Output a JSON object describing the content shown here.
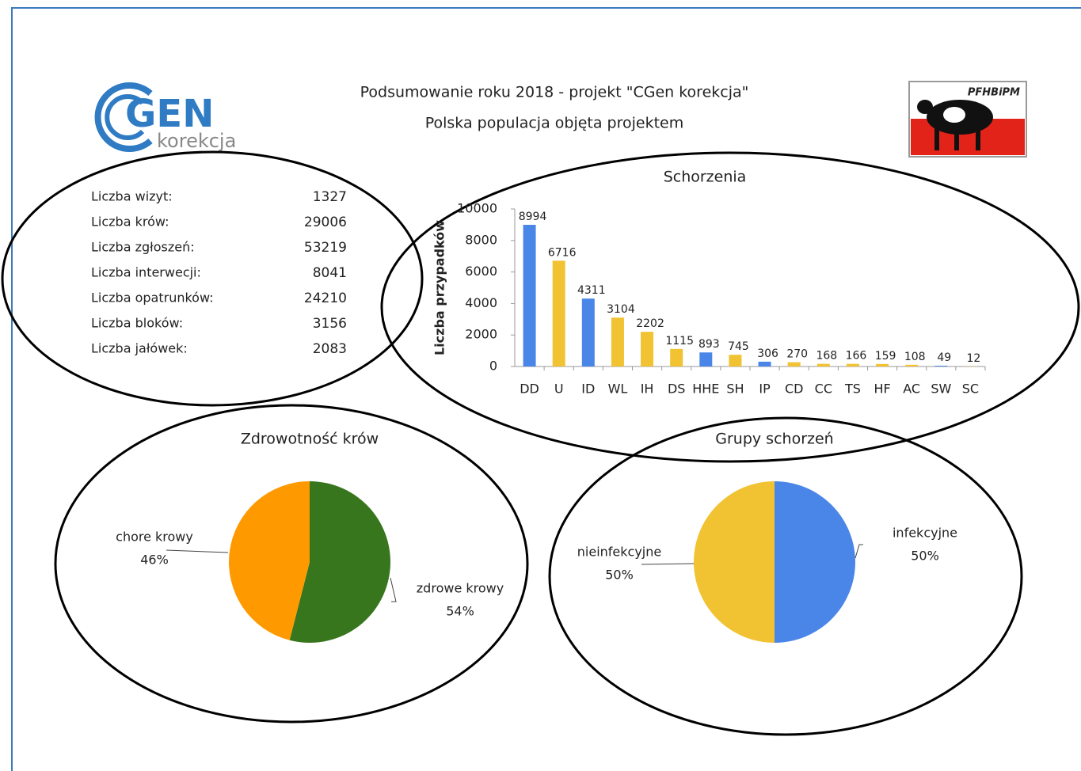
{
  "header": {
    "title": "Podsumowanie roku 2018 - projekt \"CGen korekcja\"",
    "subtitle": "Polska populacja objęta projektem",
    "logo_main": "GEN",
    "logo_sub": "korekcja",
    "logo_right": "PFHBiPM"
  },
  "stats": [
    {
      "label": "Liczba wizyt:",
      "value": "1327"
    },
    {
      "label": "Liczba krów:",
      "value": "29006"
    },
    {
      "label": "Liczba zgłoszeń:",
      "value": "53219"
    },
    {
      "label": "Liczba interwecji:",
      "value": "8041"
    },
    {
      "label": "Liczba opatrunków:",
      "value": "24210"
    },
    {
      "label": "Liczba bloków:",
      "value": "3156"
    },
    {
      "label": "Liczba jałówek:",
      "value": "2083"
    }
  ],
  "chart_data": [
    {
      "type": "bar",
      "title": "Schorzenia",
      "y_label": "Liczba przypadków",
      "categories": [
        "DD",
        "U",
        "ID",
        "WL",
        "IH",
        "DS",
        "HHE",
        "SH",
        "IP",
        "CD",
        "CC",
        "TS",
        "HF",
        "AC",
        "SW",
        "SC"
      ],
      "values": [
        8994,
        6716,
        4311,
        3104,
        2202,
        1115,
        893,
        745,
        306,
        270,
        168,
        166,
        159,
        108,
        49,
        12
      ],
      "colors": [
        "#4a86e8",
        "#f1c232",
        "#4a86e8",
        "#f1c232",
        "#f1c232",
        "#f1c232",
        "#4a86e8",
        "#f1c232",
        "#4a86e8",
        "#f1c232",
        "#f1c232",
        "#f1c232",
        "#f1c232",
        "#f1c232",
        "#4a86e8",
        "#f1c232"
      ],
      "ylim": [
        0,
        10000
      ],
      "yticks": [
        0,
        2000,
        4000,
        6000,
        8000,
        10000
      ]
    },
    {
      "type": "pie",
      "title": "Zdrowotność krów",
      "categories": [
        "zdrowe krowy",
        "chore krowy"
      ],
      "values": [
        54,
        46
      ],
      "value_labels": [
        "54%",
        "46%"
      ],
      "colors": [
        "#38761d",
        "#ff9900"
      ]
    },
    {
      "type": "pie",
      "title": "Grupy schorzeń",
      "categories": [
        "infekcyjne",
        "nieinfekcyjne"
      ],
      "values": [
        50,
        50
      ],
      "value_labels": [
        "50%",
        "50%"
      ],
      "colors": [
        "#4a86e8",
        "#f1c232"
      ]
    }
  ]
}
